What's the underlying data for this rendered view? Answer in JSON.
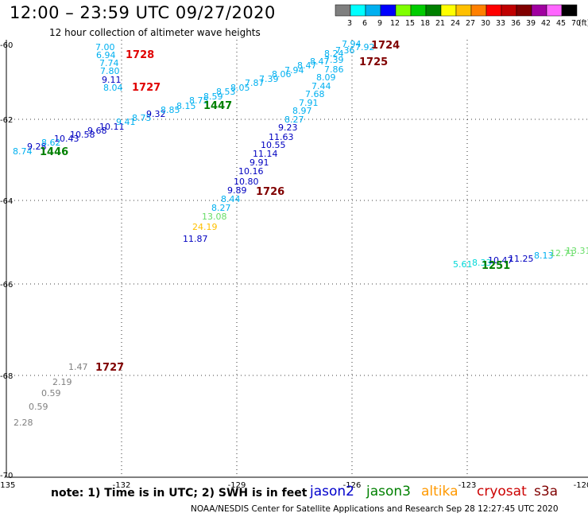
{
  "header": {
    "title": "12:00 – 23:59 UTC 09/27/2020",
    "subtitle": "12 hour collection of altimeter wave heights"
  },
  "color_scale": {
    "unit": "(ft)",
    "labels": [
      "3",
      "6",
      "9",
      "12",
      "15",
      "18",
      "21",
      "24",
      "27",
      "30",
      "33",
      "36",
      "39",
      "42",
      "45",
      "70"
    ],
    "colors": [
      "#7f7f7f",
      "#00ffff",
      "#00b0f0",
      "#0000ff",
      "#7fff00",
      "#00cc00",
      "#008000",
      "#ffff00",
      "#ffc000",
      "#ff8000",
      "#ff0000",
      "#c00000",
      "#800000",
      "#a000a0",
      "#ff66ff",
      "#000000"
    ]
  },
  "axes": {
    "lon_labels": [
      "-135",
      "-132",
      "-129",
      "-126",
      "-123",
      "-120"
    ],
    "lat_labels": [
      "-60",
      "-62",
      "-64",
      "-66",
      "-68",
      "-70"
    ]
  },
  "tracks": [
    {
      "values": [
        "7.00",
        "6.94",
        "7.74",
        "7.80",
        "9.11",
        "8.04"
      ],
      "colors": [
        "#00b0f0",
        "#00b0f0",
        "#00b0f0",
        "#00b0f0",
        "#0000c0",
        "#00b0f0"
      ]
    },
    {
      "values": [
        "8.74",
        "9.28",
        "8.62",
        "10.43",
        "10.58",
        "9.68",
        "10.11",
        "9.41",
        "8.75",
        "9.32",
        "8.85",
        "8.15",
        "8.75",
        "8.59",
        "8.53",
        "8.05",
        "7.87",
        "7.39",
        "8.06",
        "7.94",
        "8.47",
        "8.47",
        "7.39",
        "8.24",
        "7.36",
        "7.94",
        "7.92"
      ],
      "colors": [
        "#00b0f0",
        "#0000c0",
        "#00b0f0",
        "#0000c0",
        "#0000c0",
        "#0000c0",
        "#0000c0",
        "#00b0f0",
        "#00b0f0",
        "#0000c0",
        "#00b0f0",
        "#00b0f0",
        "#00b0f0",
        "#00b0f0",
        "#00b0f0",
        "#00b0f0",
        "#00b0f0",
        "#00b0f0",
        "#00b0f0",
        "#00b0f0",
        "#00b0f0",
        "#00b0f0",
        "#00b0f0",
        "#00b0f0",
        "#00b0f0",
        "#00b0f0",
        "#00b0f0"
      ]
    },
    {
      "values": [
        "7.86",
        "8.09",
        "7.44",
        "7.68",
        "7.91",
        "8.97",
        "8.27",
        "9.23",
        "11.63",
        "10.55",
        "11.14",
        "9.91",
        "10.16",
        "10.80",
        "9.89",
        "8.44",
        "8.27",
        "13.08",
        "24.19",
        "11.87"
      ],
      "colors": [
        "#00b0f0",
        "#00b0f0",
        "#00b0f0",
        "#00b0f0",
        "#00b0f0",
        "#00b0f0",
        "#00b0f0",
        "#0000c0",
        "#0000c0",
        "#0000c0",
        "#0000c0",
        "#0000c0",
        "#0000c0",
        "#0000c0",
        "#0000c0",
        "#00b0f0",
        "#00b0f0",
        "#66dd66",
        "#ffc000",
        "#0000c0"
      ]
    },
    {
      "values": [
        "5.61",
        "8.33",
        "10.47",
        "11.25",
        "8.13",
        "12.71",
        "13.31"
      ],
      "colors": [
        "#00d8d8",
        "#00d8d8",
        "#0000c0",
        "#0000c0",
        "#00b0f0",
        "#66dd66",
        "#66dd66"
      ]
    },
    {
      "values": [
        "1.47",
        "2.19",
        "0.59",
        "0.59",
        "2.28"
      ],
      "colors": [
        "#808080",
        "#808080",
        "#808080",
        "#808080",
        "#808080"
      ]
    }
  ],
  "passes": [
    {
      "label": "1728",
      "color": "#e00000"
    },
    {
      "label": "1727",
      "color": "#e00000"
    },
    {
      "label": "1447",
      "color": "#008000"
    },
    {
      "label": "1446",
      "color": "#008000"
    },
    {
      "label": "1724",
      "color": "#800000"
    },
    {
      "label": "1725",
      "color": "#800000"
    },
    {
      "label": "1726",
      "color": "#800000"
    },
    {
      "label": "1251",
      "color": "#008000"
    },
    {
      "label": "1727",
      "color": "#800000"
    }
  ],
  "note": "note:  1) Time is in UTC;  2) SWH is in feet",
  "legend": [
    {
      "label": "jason2",
      "color": "#0000cc"
    },
    {
      "label": "jason3",
      "color": "#008000"
    },
    {
      "label": "altika",
      "color": "#ff9900"
    },
    {
      "label": "cryosat",
      "color": "#cc0000"
    },
    {
      "label": "s3a",
      "color": "#800000"
    }
  ],
  "footer": "NOAA/NESDIS Center for Satellite Applications and Research    Sep 28 12:27:45 UTC 2020"
}
